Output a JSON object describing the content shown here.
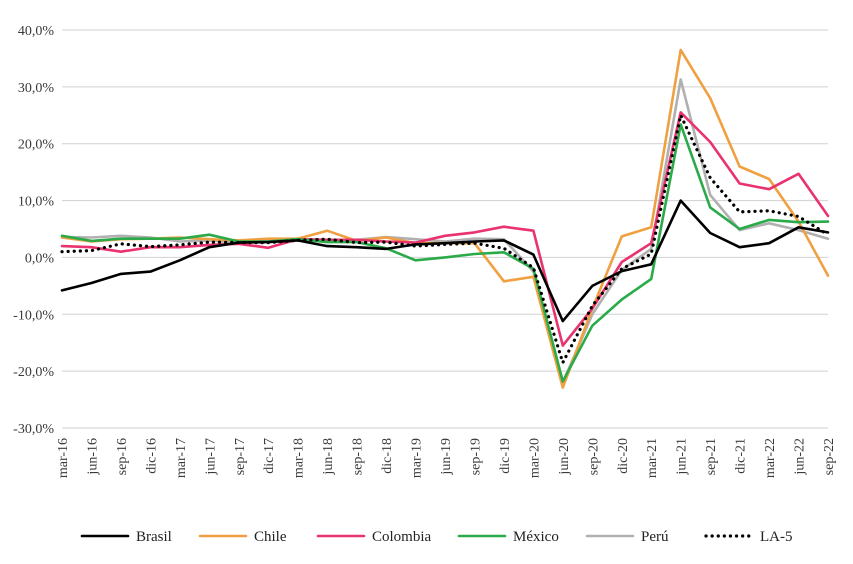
{
  "chart_data": {
    "type": "line",
    "title": "",
    "xlabel": "",
    "ylabel": "",
    "ylim": [
      -30,
      40
    ],
    "yticks": [
      -30,
      -20,
      -10,
      0,
      10,
      20,
      30,
      40
    ],
    "ytick_labels": [
      "-30,0%",
      "-20,0%",
      "-10,0%",
      "0,0%",
      "10,0%",
      "20,0%",
      "30,0%",
      "40,0%"
    ],
    "grid": true,
    "legend_position": "bottom",
    "categories": [
      "mar-16",
      "jun-16",
      "sep-16",
      "dic-16",
      "mar-17",
      "jun-17",
      "sep-17",
      "dic-17",
      "mar-18",
      "jun-18",
      "sep-18",
      "dic-18",
      "mar-19",
      "jun-19",
      "sep-19",
      "dic-19",
      "mar-20",
      "jun-20",
      "sep-20",
      "dic-20",
      "mar-21",
      "jun-21",
      "sep-21",
      "dic-21",
      "mar-22",
      "jun-22",
      "sep-22"
    ],
    "series": [
      {
        "name": "Brasil",
        "color": "#000000",
        "dash": "solid",
        "values": [
          -5.8,
          -4.5,
          -2.9,
          -2.5,
          -0.5,
          1.8,
          2.6,
          2.7,
          3.0,
          2.0,
          1.8,
          1.5,
          2.3,
          2.5,
          2.8,
          3.0,
          0.5,
          -11.2,
          -5.0,
          -2.4,
          -1.2,
          10.0,
          4.3,
          1.8,
          2.5,
          5.3,
          4.4
        ]
      },
      {
        "name": "Chile",
        "color": "#F0A040",
        "dash": "solid",
        "values": [
          3.5,
          2.8,
          3.2,
          3.3,
          3.5,
          3.2,
          3.0,
          3.3,
          3.3,
          4.7,
          2.9,
          3.5,
          2.5,
          2.5,
          2.5,
          -4.2,
          -3.4,
          -22.9,
          -9.0,
          3.7,
          5.3,
          36.5,
          28.0,
          16.0,
          13.8,
          6.3,
          -3.2
        ]
      },
      {
        "name": "Colombia",
        "color": "#E8336E",
        "dash": "solid",
        "values": [
          2.0,
          1.8,
          1.0,
          1.8,
          1.8,
          2.2,
          2.4,
          1.7,
          3.2,
          3.1,
          3.1,
          2.8,
          2.6,
          3.8,
          4.4,
          5.4,
          4.7,
          -15.5,
          -9.0,
          -0.8,
          2.5,
          25.5,
          20.3,
          13.0,
          12.0,
          14.7,
          7.3
        ]
      },
      {
        "name": "México",
        "color": "#2BAA4A",
        "dash": "solid",
        "values": [
          3.8,
          2.9,
          3.3,
          3.3,
          3.3,
          4.0,
          2.8,
          2.8,
          3.2,
          2.7,
          2.7,
          1.6,
          -0.5,
          0.0,
          0.6,
          0.9,
          -2.0,
          -21.8,
          -12.0,
          -7.4,
          -3.8,
          23.4,
          8.8,
          5.0,
          6.6,
          6.2,
          6.3
        ]
      },
      {
        "name": "Perú",
        "color": "#B0B0B0",
        "dash": "solid",
        "values": [
          3.6,
          3.5,
          3.8,
          3.5,
          2.8,
          3.0,
          2.6,
          3.0,
          3.0,
          3.1,
          3.1,
          3.6,
          3.2,
          2.8,
          3.3,
          3.2,
          -2.5,
          -22.0,
          -10.0,
          -2.2,
          1.5,
          31.3,
          11.0,
          4.8,
          6.0,
          4.8,
          3.3
        ]
      },
      {
        "name": "LA-5",
        "color": "#000000",
        "dash": "dotted",
        "values": [
          1.0,
          1.2,
          2.4,
          1.9,
          2.2,
          2.7,
          2.6,
          2.6,
          3.0,
          3.2,
          2.6,
          2.7,
          2.0,
          2.3,
          2.5,
          1.6,
          -1.8,
          -18.5,
          -8.5,
          -2.0,
          0.6,
          25.0,
          14.0,
          8.0,
          8.2,
          7.2,
          4.0
        ]
      }
    ]
  }
}
